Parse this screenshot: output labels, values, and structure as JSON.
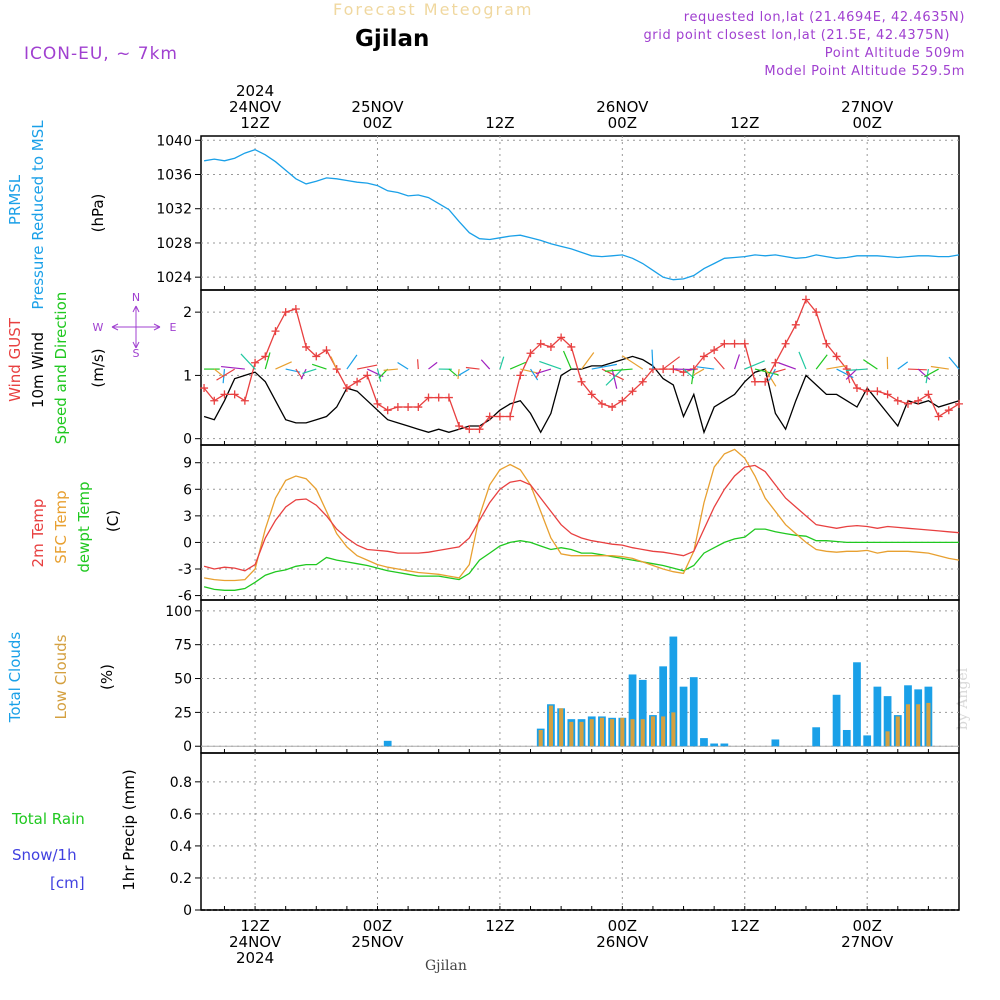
{
  "header": {
    "product": "Forecast Meteogram",
    "location": "Gjilan",
    "model": "ICON-EU, ~ 7km",
    "requested": "requested lon,lat (21.4694E, 42.4635N)",
    "grid_point": "grid point closest lon,lat (21.5E, 42.4375N)",
    "point_altitude": "Point Altitude 509m",
    "model_altitude": "Model Point Altitude 529.5m",
    "credit": "by Angel",
    "footer_location": "Gjilan"
  },
  "colors": {
    "pressure": "#1aa0e8",
    "gust": "#e84040",
    "wind": "#000000",
    "t2m": "#e84040",
    "tsfc": "#e8a030",
    "dewpt": "#20c820",
    "total_clouds": "#1aa0e8",
    "low_clouds": "#d4a040",
    "rain": "#20c820",
    "snow": "#4040e0",
    "compass": "#a040d0"
  },
  "time_axis": {
    "top_labels": [
      {
        "hour": 36,
        "lines": [
          "2024",
          "24NOV",
          "12Z"
        ]
      },
      {
        "hour": 48,
        "lines": [
          "25NOV",
          "00Z"
        ]
      },
      {
        "hour": 60,
        "lines": [
          "12Z"
        ]
      },
      {
        "hour": 72,
        "lines": [
          "26NOV",
          "00Z"
        ]
      },
      {
        "hour": 84,
        "lines": [
          "12Z"
        ]
      },
      {
        "hour": 96,
        "lines": [
          "27NOV",
          "00Z"
        ]
      }
    ],
    "bottom_labels": [
      {
        "hour": 36,
        "lines": [
          "12Z",
          "24NOV",
          "2024"
        ]
      },
      {
        "hour": 48,
        "lines": [
          "00Z",
          "25NOV"
        ]
      },
      {
        "hour": 60,
        "lines": [
          "12Z"
        ]
      },
      {
        "hour": 72,
        "lines": [
          "00Z",
          "26NOV"
        ]
      },
      {
        "hour": 84,
        "lines": [
          "12Z"
        ]
      },
      {
        "hour": 96,
        "lines": [
          "00Z",
          "27NOV"
        ]
      }
    ]
  },
  "panels": {
    "pressure": {
      "labels": [
        "PRMSL",
        "Pressure Reduced to MSL"
      ],
      "unit": "(hPa)",
      "yticks": [
        1024,
        1028,
        1032,
        1036,
        1040
      ],
      "ylim": [
        1022.5,
        1040.5
      ]
    },
    "wind": {
      "labels": [
        "Wind GUST",
        "10m Wind",
        "Speed and Direction"
      ],
      "unit": "(m/s)",
      "yticks": [
        0,
        1,
        2
      ],
      "ylim": [
        -0.1,
        2.35
      ],
      "compass": {
        "n": "N",
        "s": "S",
        "w": "W",
        "e": "E"
      }
    },
    "temperature": {
      "labels": [
        "2m Temp",
        "SFC Temp",
        "dewpt Temp"
      ],
      "unit": "(C)",
      "yticks": [
        -6,
        -3,
        0,
        3,
        6,
        9
      ],
      "ylim": [
        -6.5,
        11
      ]
    },
    "clouds": {
      "labels": [
        "Total Clouds",
        "Low Clouds"
      ],
      "unit": "(%)",
      "yticks": [
        0,
        25,
        50,
        75,
        100
      ],
      "ylim": [
        -5,
        108
      ]
    },
    "precip": {
      "labels": [
        "Total  Rain",
        "Snow/1h",
        "[cm]"
      ],
      "unit": "1hr Precip (mm)",
      "yticks": [
        0,
        0.2,
        0.4,
        0.6,
        0.8
      ],
      "ylim": [
        0,
        0.98
      ]
    }
  },
  "chart_data": [
    {
      "type": "line",
      "ylabel": "PRMSL Pressure Reduced to MSL (hPa)",
      "x_hours": [
        31,
        32,
        33,
        34,
        35,
        36,
        37,
        38,
        39,
        40,
        41,
        42,
        43,
        44,
        45,
        46,
        47,
        48,
        49,
        50,
        51,
        52,
        53,
        54,
        55,
        56,
        57,
        58,
        59,
        60,
        61,
        62,
        63,
        64,
        65,
        66,
        67,
        68,
        69,
        70,
        71,
        72,
        73,
        74,
        75,
        76,
        77,
        78,
        79,
        80,
        81,
        82,
        83,
        84,
        85,
        86,
        87,
        88,
        89,
        90,
        91,
        92,
        93,
        94,
        95,
        96,
        97,
        98,
        99,
        100,
        101,
        102,
        103,
        104,
        105
      ],
      "series": [
        {
          "values": [
            1037.6,
            1037.8,
            1037.6,
            1037.9,
            1038.5,
            1038.9,
            1038.3,
            1037.5,
            1036.5,
            1035.5,
            1034.9,
            1035.2,
            1035.6,
            1035.5,
            1035.3,
            1035.1,
            1035.0,
            1034.7,
            1034.1,
            1033.9,
            1033.5,
            1033.6,
            1033.3,
            1032.6,
            1031.9,
            1030.5,
            1029.2,
            1028.5,
            1028.4,
            1028.6,
            1028.8,
            1028.9,
            1028.6,
            1028.3,
            1027.9,
            1027.6,
            1027.3,
            1026.9,
            1026.5,
            1026.4,
            1026.5,
            1026.6,
            1026.2,
            1025.6,
            1024.8,
            1024.0,
            1023.7,
            1023.8,
            1024.2,
            1025.0,
            1025.6,
            1026.2,
            1026.3,
            1026.4,
            1026.6,
            1026.5,
            1026.6,
            1026.4,
            1026.2,
            1026.3,
            1026.6,
            1026.4,
            1026.2,
            1026.3,
            1026.5,
            1026.5,
            1026.5,
            1026.4,
            1026.3,
            1026.4,
            1026.5,
            1026.5,
            1026.4,
            1026.4,
            1026.6
          ]
        }
      ]
    },
    {
      "type": "line",
      "ylabel": "Wind GUST / 10m Wind Speed and Direction (m/s)",
      "x_hours": [
        31,
        32,
        33,
        34,
        35,
        36,
        37,
        38,
        39,
        40,
        41,
        42,
        43,
        44,
        45,
        46,
        47,
        48,
        49,
        50,
        51,
        52,
        53,
        54,
        55,
        56,
        57,
        58,
        59,
        60,
        61,
        62,
        63,
        64,
        65,
        66,
        67,
        68,
        69,
        70,
        71,
        72,
        73,
        74,
        75,
        76,
        77,
        78,
        79,
        80,
        81,
        82,
        83,
        84,
        85,
        86,
        87,
        88,
        89,
        90,
        91,
        92,
        93,
        94,
        95,
        96,
        97,
        98,
        99,
        100,
        101,
        102,
        103,
        104,
        105
      ],
      "series": [
        {
          "name": "Wind GUST",
          "values": [
            0.8,
            0.6,
            0.7,
            0.7,
            0.6,
            1.2,
            1.3,
            1.7,
            2.0,
            2.05,
            1.45,
            1.3,
            1.4,
            1.1,
            0.8,
            0.9,
            1.0,
            0.55,
            0.45,
            0.5,
            0.5,
            0.5,
            0.65,
            0.65,
            0.65,
            0.2,
            0.15,
            0.15,
            0.35,
            0.35,
            0.35,
            1.0,
            1.35,
            1.5,
            1.45,
            1.6,
            1.45,
            0.9,
            0.7,
            0.55,
            0.5,
            0.6,
            0.75,
            0.9,
            1.1,
            1.1,
            1.1,
            1.05,
            1.1,
            1.3,
            1.4,
            1.5,
            1.5,
            1.5,
            0.9,
            0.9,
            1.2,
            1.5,
            1.8,
            2.2,
            2.0,
            1.5,
            1.3,
            1.1,
            0.8,
            0.75,
            0.75,
            0.7,
            0.6,
            0.55,
            0.6,
            0.7,
            0.35,
            0.45,
            0.55
          ]
        },
        {
          "name": "10m Wind",
          "values": [
            0.35,
            0.3,
            0.6,
            0.95,
            1.0,
            1.05,
            0.9,
            0.6,
            0.3,
            0.25,
            0.25,
            0.3,
            0.35,
            0.5,
            0.8,
            0.75,
            0.6,
            0.45,
            0.3,
            0.25,
            0.2,
            0.15,
            0.1,
            0.15,
            0.1,
            0.15,
            0.2,
            0.2,
            0.3,
            0.45,
            0.55,
            0.6,
            0.4,
            0.1,
            0.4,
            1.0,
            1.1,
            1.1,
            1.15,
            1.15,
            1.2,
            1.25,
            1.3,
            1.25,
            1.15,
            0.95,
            0.85,
            0.35,
            0.7,
            0.1,
            0.5,
            0.6,
            0.7,
            0.9,
            1.05,
            1.1,
            0.4,
            0.15,
            0.6,
            1.0,
            0.85,
            0.7,
            0.7,
            0.6,
            0.5,
            0.8,
            0.6,
            0.4,
            0.2,
            0.6,
            0.55,
            0.6,
            0.5,
            0.55,
            0.6
          ]
        }
      ]
    },
    {
      "type": "line",
      "ylabel": "2m Temp / SFC Temp / dewpt Temp (C)",
      "x_hours": [
        31,
        32,
        33,
        34,
        35,
        36,
        37,
        38,
        39,
        40,
        41,
        42,
        43,
        44,
        45,
        46,
        47,
        48,
        49,
        50,
        51,
        52,
        53,
        54,
        55,
        56,
        57,
        58,
        59,
        60,
        61,
        62,
        63,
        64,
        65,
        66,
        67,
        68,
        69,
        70,
        71,
        72,
        73,
        74,
        75,
        76,
        77,
        78,
        79,
        80,
        81,
        82,
        83,
        84,
        85,
        86,
        87,
        88,
        89,
        90,
        91,
        92,
        93,
        94,
        95,
        96,
        97,
        98,
        99,
        100,
        101,
        102,
        103,
        104,
        105
      ],
      "series": [
        {
          "name": "2m Temp",
          "values": [
            -2.7,
            -3.0,
            -2.8,
            -2.9,
            -3.2,
            -2.5,
            0.5,
            2.5,
            4.0,
            4.8,
            4.9,
            4.2,
            3.0,
            1.5,
            0.5,
            -0.3,
            -0.8,
            -0.9,
            -1.0,
            -1.2,
            -1.2,
            -1.2,
            -1.1,
            -0.9,
            -0.7,
            -0.5,
            0.5,
            2.5,
            4.5,
            6.0,
            6.8,
            7.0,
            6.5,
            5.0,
            3.5,
            2.0,
            1.0,
            0.5,
            0.2,
            0.0,
            -0.2,
            -0.3,
            -0.6,
            -0.8,
            -1.0,
            -1.1,
            -1.3,
            -1.5,
            -1.0,
            1.5,
            4.0,
            6.0,
            7.5,
            8.5,
            8.7,
            8.0,
            6.5,
            5.0,
            4.0,
            3.0,
            2.0,
            1.8,
            1.6,
            1.8,
            1.9,
            1.8,
            1.6,
            1.8,
            1.7,
            1.6,
            1.5,
            1.4,
            1.3,
            1.2,
            1.1
          ]
        },
        {
          "name": "SFC Temp",
          "values": [
            -4.0,
            -4.2,
            -4.3,
            -4.3,
            -4.2,
            -3.0,
            1.5,
            5.0,
            7.0,
            7.5,
            7.2,
            6.0,
            3.5,
            1.0,
            -0.5,
            -1.5,
            -2.0,
            -2.5,
            -2.8,
            -3.0,
            -3.2,
            -3.4,
            -3.5,
            -3.6,
            -3.8,
            -4.0,
            -2.5,
            3.0,
            6.5,
            8.2,
            8.8,
            8.2,
            6.5,
            3.5,
            0.5,
            -1.3,
            -1.5,
            -1.5,
            -1.5,
            -1.5,
            -1.5,
            -1.6,
            -1.8,
            -2.2,
            -2.6,
            -3.0,
            -3.3,
            -3.5,
            -1.0,
            4.5,
            8.5,
            10.0,
            10.5,
            9.5,
            7.5,
            5.0,
            3.5,
            2.0,
            1.0,
            0.0,
            -0.8,
            -1.0,
            -1.1,
            -1.0,
            -1.0,
            -0.9,
            -1.2,
            -1.0,
            -1.0,
            -1.0,
            -1.1,
            -1.2,
            -1.5,
            -1.8,
            -2.0
          ]
        },
        {
          "name": "dewpt Temp",
          "values": [
            -5.0,
            -5.3,
            -5.4,
            -5.4,
            -5.2,
            -4.5,
            -3.7,
            -3.3,
            -3.1,
            -2.7,
            -2.5,
            -2.5,
            -1.7,
            -2.0,
            -2.2,
            -2.4,
            -2.6,
            -2.9,
            -3.2,
            -3.4,
            -3.6,
            -3.8,
            -3.8,
            -3.8,
            -4.0,
            -4.2,
            -3.5,
            -2.0,
            -1.2,
            -0.4,
            0.0,
            0.2,
            0.0,
            -0.4,
            -0.8,
            -0.6,
            -0.8,
            -1.2,
            -1.2,
            -1.4,
            -1.6,
            -1.8,
            -2.0,
            -2.2,
            -2.4,
            -2.6,
            -2.9,
            -3.2,
            -2.6,
            -1.2,
            -0.6,
            0.0,
            0.4,
            0.6,
            1.5,
            1.5,
            1.2,
            1.0,
            0.8,
            0.7,
            0.2,
            0.2,
            0.1,
            0.0,
            0.0,
            0.0,
            0.0,
            0.0,
            0.0,
            0.0,
            0.0,
            0.0,
            0.0,
            0.0,
            0.0
          ]
        }
      ]
    },
    {
      "type": "bar",
      "ylabel": "Total Clouds / Low Clouds (%)",
      "x_hours": [
        49,
        62,
        63,
        64,
        65,
        66,
        67,
        68,
        69,
        70,
        71,
        72,
        73,
        74,
        75,
        76,
        77,
        78,
        79,
        80,
        81,
        82,
        83,
        84,
        85,
        87,
        89,
        91,
        92,
        93,
        94,
        95,
        96,
        97,
        98,
        99,
        100,
        101,
        102,
        103,
        104,
        105
      ],
      "series": [
        {
          "name": "Total Clouds",
          "values": [
            4,
            0,
            0,
            13,
            31,
            28,
            20,
            20,
            22,
            22,
            21,
            21,
            53,
            49,
            23,
            59,
            81,
            44,
            51,
            6,
            2,
            2,
            0,
            0,
            0,
            5,
            0,
            14,
            0,
            38,
            12,
            62,
            8,
            44,
            37,
            23,
            45,
            42,
            44,
            0,
            0,
            0
          ]
        },
        {
          "name": "Low Clouds",
          "values": [
            0,
            0,
            0,
            12,
            30,
            28,
            18,
            18,
            20,
            21,
            20,
            21,
            20,
            20,
            22,
            22,
            25,
            0,
            0,
            0,
            0,
            0,
            0,
            0,
            0,
            0,
            0,
            0,
            0,
            0,
            0,
            0,
            0,
            0,
            11,
            22,
            31,
            31,
            32,
            0,
            0,
            0
          ]
        }
      ]
    },
    {
      "type": "bar",
      "ylabel": "1hr Precip (mm)",
      "x_hours": [],
      "series": [
        {
          "name": "Total Rain",
          "values": []
        },
        {
          "name": "Snow/1h [cm]",
          "values": []
        }
      ]
    }
  ]
}
